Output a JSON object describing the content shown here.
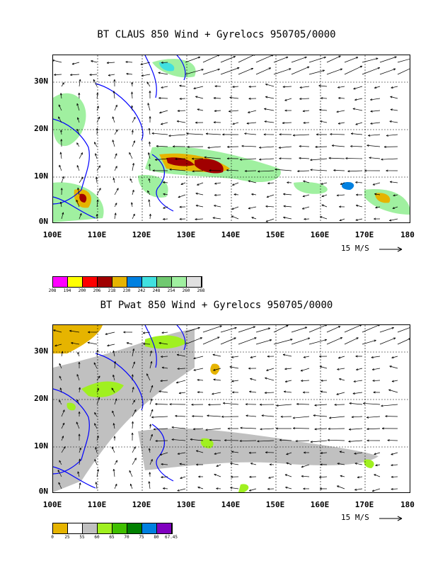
{
  "panels": [
    {
      "id": "top",
      "title": "BT CLAUS 850 Wind + Gyrelocs 950705/0000",
      "scale_label": "15 M/S",
      "y_ticks": [
        "30N",
        "20N",
        "10N",
        "0N"
      ],
      "x_ticks": [
        "100E",
        "110E",
        "120E",
        "130E",
        "140E",
        "150E",
        "160E",
        "170E",
        "180"
      ],
      "colorbar_labels": [
        "208",
        "194",
        "200",
        "206",
        "218",
        "230",
        "242",
        "248",
        "254",
        "260",
        "268"
      ],
      "colorbar_colors": [
        "#ff00ff",
        "#ffff00",
        "#ff0000",
        "#a00000",
        "#e6b400",
        "#0080e0",
        "#40e0e0",
        "#70c870",
        "#a0f0a0",
        "#e0e0e0"
      ]
    },
    {
      "id": "bottom",
      "title": "BT Pwat 850 Wind + Gyrelocs 950705/0000",
      "scale_label": "15 M/S",
      "y_ticks": [
        "30N",
        "20N",
        "10N",
        "0N"
      ],
      "x_ticks": [
        "100E",
        "110E",
        "120E",
        "130E",
        "140E",
        "150E",
        "160E",
        "170E",
        "180"
      ],
      "colorbar_labels": [
        "0",
        "25",
        "55",
        "60",
        "65",
        "70",
        "75",
        "80",
        "67.45"
      ],
      "colorbar_colors": [
        "#e6b400",
        "#ffffff",
        "#c0c0c0",
        "#a0f020",
        "#40c000",
        "#008000",
        "#0080e0",
        "#8000c0"
      ]
    }
  ]
}
